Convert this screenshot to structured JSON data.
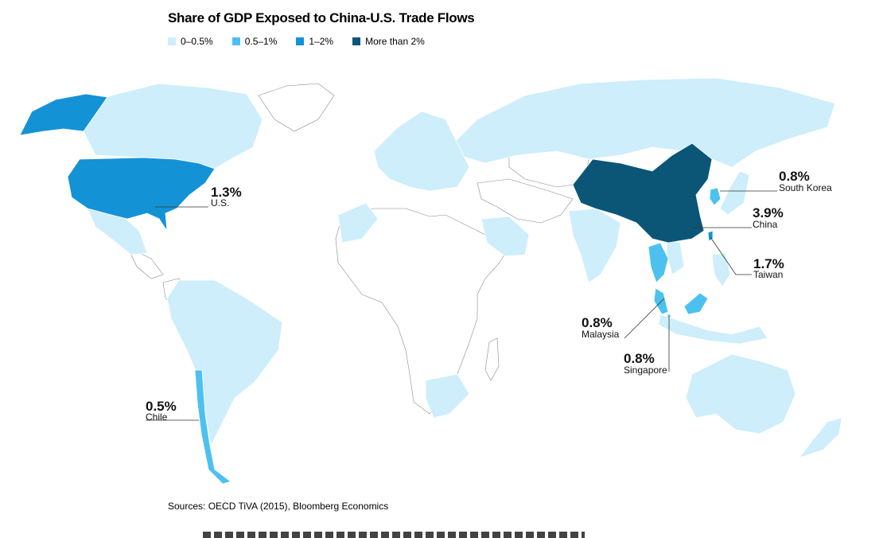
{
  "title": "Share of GDP Exposed to China-U.S. Trade Flows",
  "legend": [
    {
      "label": "0–0.5%",
      "color": "#cdeefa"
    },
    {
      "label": "0.5–1%",
      "color": "#4cc1ef"
    },
    {
      "label": "1–2%",
      "color": "#1492d6"
    },
    {
      "label": "More than 2%",
      "color": "#0b5677"
    }
  ],
  "countries": [
    {
      "name": "China",
      "value": "3.9%",
      "bucket": "More than 2%"
    },
    {
      "name": "Taiwan",
      "value": "1.7%",
      "bucket": "1–2%"
    },
    {
      "name": "U.S.",
      "value": "1.3%",
      "bucket": "1–2%"
    },
    {
      "name": "South Korea",
      "value": "0.8%",
      "bucket": "0.5–1%"
    },
    {
      "name": "Malaysia",
      "value": "0.8%",
      "bucket": "0.5–1%"
    },
    {
      "name": "Singapore",
      "value": "0.8%",
      "bucket": "0.5–1%"
    },
    {
      "name": "Chile",
      "value": "0.5%",
      "bucket": "0.5–1%"
    }
  ],
  "source": "Sources: OECD TiVA (2015), Bloomberg Economics"
}
